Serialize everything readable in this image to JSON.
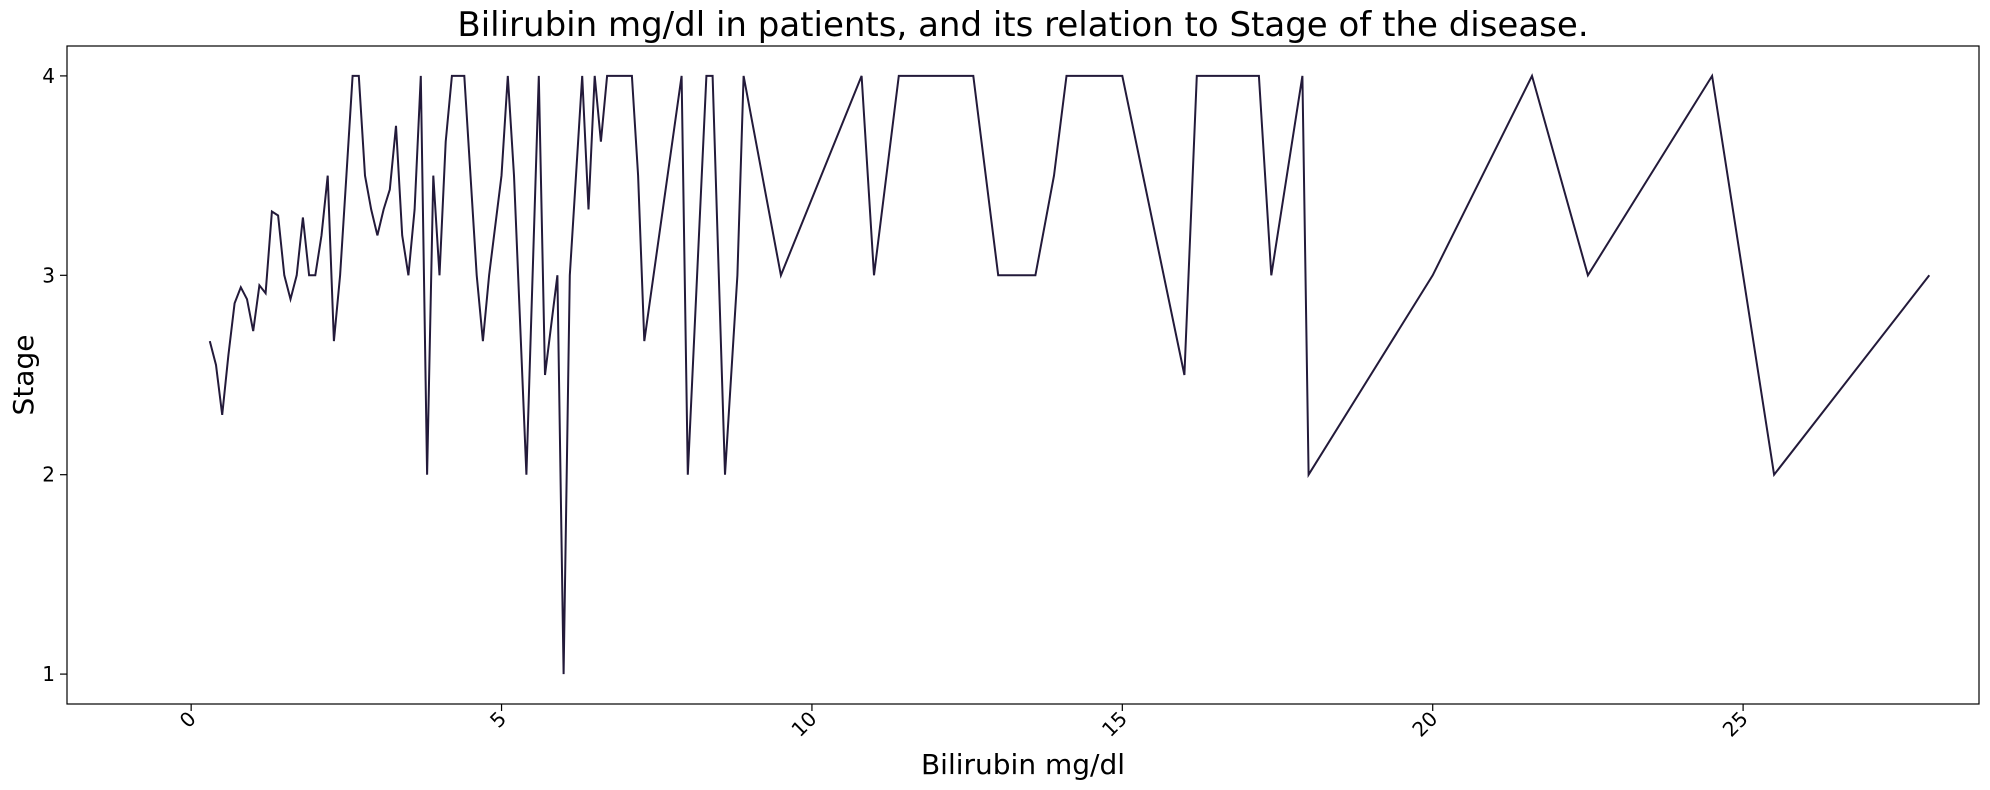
{
  "chart_data": {
    "type": "line",
    "title": "Bilirubin mg/dl in patients, and its relation to Stage of the disease.",
    "xlabel": "Bilirubin mg/dl",
    "ylabel": "Stage",
    "xlim": [
      -2,
      28.8
    ],
    "ylim": [
      0.85,
      4.15
    ],
    "xticks": [
      0,
      5,
      10,
      15,
      20,
      25
    ],
    "yticks": [
      1,
      2,
      3,
      4
    ],
    "grid": false,
    "legend": "none",
    "line_color": "#231a3a",
    "series": [
      {
        "x": [
          0.3,
          0.4,
          0.5,
          0.6,
          0.7,
          0.8,
          0.9,
          1.0,
          1.1,
          1.2,
          1.3,
          1.4,
          1.5,
          1.6,
          1.7,
          1.8,
          1.9,
          2.0,
          2.1,
          2.2,
          2.3,
          2.4,
          2.5,
          2.6,
          2.7,
          2.8,
          2.9,
          3.0,
          3.1,
          3.2,
          3.3,
          3.4,
          3.5,
          3.6,
          3.7,
          3.8,
          3.9,
          4.0,
          4.1,
          4.2,
          4.3,
          4.4,
          4.5,
          4.6,
          4.7,
          4.8,
          5.0,
          5.1,
          5.2,
          5.4,
          5.6,
          5.7,
          5.9,
          6.0,
          6.1,
          6.3,
          6.4,
          6.5,
          6.6,
          6.7,
          6.9,
          7.1,
          7.2,
          7.3,
          7.9,
          8.0,
          8.3,
          8.4,
          8.6,
          8.8,
          8.9,
          9.5,
          10.8,
          11.0,
          11.4,
          12.6,
          13.0,
          13.6,
          13.9,
          14.1,
          15.0,
          16.0,
          16.2,
          17.2,
          17.4,
          17.9,
          18.0,
          20.0,
          21.6,
          22.5,
          24.5,
          25.5,
          28.0
        ],
        "y": [
          2.67,
          2.55,
          2.3,
          2.6,
          2.86,
          2.94,
          2.88,
          2.72,
          2.95,
          2.91,
          3.32,
          3.3,
          3.0,
          2.88,
          3.0,
          3.29,
          3.0,
          3.0,
          3.2,
          3.5,
          2.67,
          3.0,
          3.5,
          4.0,
          4.0,
          3.5,
          3.33,
          3.2,
          3.33,
          3.43,
          3.75,
          3.2,
          3.0,
          3.33,
          4.0,
          2.0,
          3.5,
          3.0,
          3.67,
          4.0,
          4.0,
          4.0,
          3.5,
          3.0,
          2.67,
          3.0,
          3.5,
          4.0,
          3.5,
          2.0,
          4.0,
          2.5,
          3.0,
          1.0,
          3.0,
          4.0,
          3.33,
          4.0,
          3.67,
          4.0,
          4.0,
          4.0,
          3.5,
          2.67,
          4.0,
          2.0,
          4.0,
          4.0,
          2.0,
          3.0,
          4.0,
          3.0,
          4.0,
          3.0,
          4.0,
          4.0,
          3.0,
          3.0,
          3.5,
          4.0,
          4.0,
          2.5,
          4.0,
          4.0,
          3.0,
          4.0,
          2.0,
          3.0,
          4.0,
          3.0,
          4.0,
          2.0,
          3.0
        ]
      }
    ]
  }
}
